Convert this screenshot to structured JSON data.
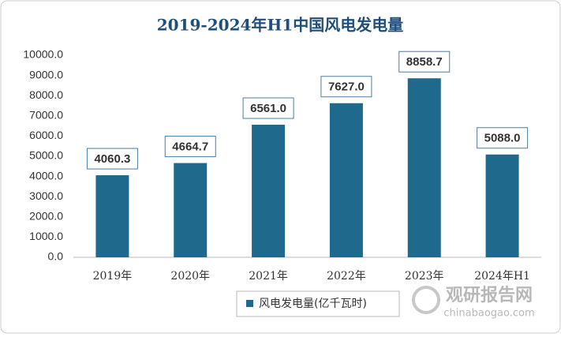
{
  "chart_data": {
    "type": "bar",
    "title": "2019-2024年H1中国风电发电量",
    "categories": [
      "2019年",
      "2020年",
      "2021年",
      "2022年",
      "2023年",
      "2024年H1"
    ],
    "series": [
      {
        "name": "风电发电量(亿千瓦时)",
        "color": "#1f6a8c",
        "values": [
          4060.3,
          4664.7,
          6561.0,
          7627.0,
          8858.7,
          5088.0
        ],
        "value_labels": [
          "4060.3",
          "4664.7",
          "6561.0",
          "7627.0",
          "8858.7",
          "5088.0"
        ]
      }
    ],
    "ylim": [
      0,
      10000
    ],
    "yticks": [
      {
        "value": 0,
        "label": "0.0"
      },
      {
        "value": 1000,
        "label": "1000.0"
      },
      {
        "value": 2000,
        "label": "2000.0"
      },
      {
        "value": 3000,
        "label": "3000.0"
      },
      {
        "value": 4000,
        "label": "4000.0"
      },
      {
        "value": 5000,
        "label": "5000.0"
      },
      {
        "value": 6000,
        "label": "6000.0"
      },
      {
        "value": 7000,
        "label": "7000.0"
      },
      {
        "value": 8000,
        "label": "8000.0"
      },
      {
        "value": 9000,
        "label": "9000.0"
      },
      {
        "value": 10000,
        "label": "10000.0"
      }
    ],
    "grid": false,
    "legend": "bottom",
    "watermark": {
      "name": "观研报告网",
      "url": "chinabaogao.com"
    }
  }
}
